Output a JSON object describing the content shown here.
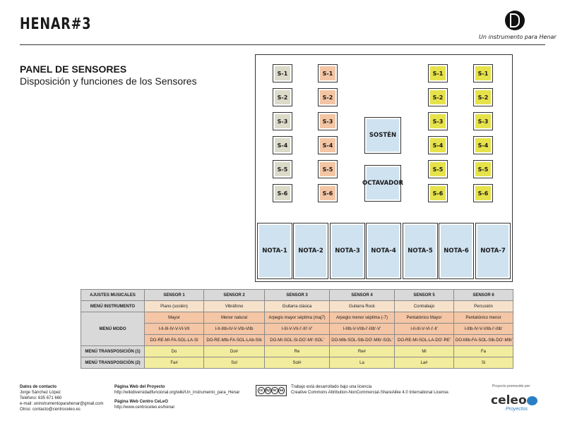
{
  "header": {
    "title": "HENAR#3",
    "tagline": "Un instrumento para Henar"
  },
  "panel": {
    "title": "PANEL DE SENSORES",
    "subtitle": "Disposición y funciones de los Sensores"
  },
  "board": {
    "columns": [
      {
        "color": "#dcdac9",
        "labels": [
          "S-1",
          "S-2",
          "S-3",
          "S-4",
          "S-5",
          "S-6"
        ]
      },
      {
        "color": "#f3c5a4",
        "labels": [
          "S-1",
          "S-2",
          "S-3",
          "S-4",
          "S-5",
          "S-6"
        ]
      },
      {
        "color": "#e6e24a",
        "labels": [
          "S-1",
          "S-2",
          "S-3",
          "S-4",
          "S-5",
          "S-6"
        ]
      },
      {
        "color": "#e6e24a",
        "labels": [
          "S-1",
          "S-2",
          "S-3",
          "S-4",
          "S-5",
          "S-6"
        ]
      }
    ],
    "sosten_label": "SOSTÉN",
    "octavador_label": "OCTAVADOR",
    "notes": [
      "NOTA-1",
      "NOTA-2",
      "NOTA-3",
      "NOTA-4",
      "NOTA-5",
      "NOTA-6",
      "NOTA-7"
    ]
  },
  "table": {
    "headers": [
      "AJUSTES MUSICALES",
      "SENSOR 1",
      "SENSOR 2",
      "SENSOR 3",
      "SENSOR 4",
      "SENSOR 5",
      "SENSOR 6"
    ],
    "instrumento": {
      "label": "MENÚ INSTRUMENTO",
      "values": [
        "Piano (sostén)",
        "Vibráfono",
        "Guitarra clásica",
        "Guitarra Rock",
        "Contrabajo",
        "Percusión"
      ]
    },
    "modo": {
      "label": "MENÚ MODO",
      "rows": [
        [
          "Mayor",
          "Menor natural",
          "Arpegio mayor séptima (maj7)",
          "Arpegio menor séptima (-7)",
          "Pentatónico Mayor",
          "Pentatónico menor"
        ],
        [
          "I-II-III-IV-V-VI-VII",
          "I-II-IIIb-IV-V-VIb-VIIb",
          "I-III-V-VII-I'-III'-V'",
          "I-IIIb-V-VIIb-I'-IIIb'-V'",
          "I-II-III-V-VI-I'-II'",
          "I-IIIb-IV-V-VIIb-I'-IIIb'"
        ],
        [
          "DO-RE-MI-FA-SOL-LA-SI",
          "DO-RE-MIb-FA-SOL-LAb-SIb",
          "DO-MI-SOL-SI-DO'-MI'-SOL'",
          "DO-MIb-SOL-SIb-DO'-MIb'-SOL'",
          "DO-RE-MI-SOL-LA-DO'-RE'",
          "DO-MIb-FA-SOL-SIb-DO'-MIb'"
        ]
      ]
    },
    "transposicion1": {
      "label": "MENÚ TRANSPOSICIÓN (1)",
      "values": [
        "Do",
        "Do#",
        "Re",
        "Re#",
        "Mi",
        "Fa"
      ]
    },
    "transposicion2": {
      "label": "MENÚ TRANSPOSICIÓN (2)",
      "values": [
        "Fa#",
        "Sol",
        "Sol#",
        "La",
        "La#",
        "Si"
      ]
    }
  },
  "footer": {
    "contact_title": "Datos de contacto",
    "contact_lines": [
      "Jorge Sánchez López",
      "Teléfono: 635 671 660",
      "e-mail: uninstrumentoparahenar@gmail.com",
      "Otros: contacto@centroceleo.es"
    ],
    "web_project_title": "Página Web del Proyecto",
    "web_project_url": "http://wikidiversidadfuncional.org/wiki/Un_instrumento_para_Henar",
    "web_celeo_title": "Página Web Centro CeLeO",
    "web_celeo_url": "http://www.centroceleo.es/henar",
    "license_lines": [
      "Trabajo está desarrollado bajo una licencia",
      "Creative Commons Attribution-NonCommercial-ShareAlike 4.0 International License."
    ],
    "cc_icons": [
      "cc",
      "by",
      "nc",
      "sa"
    ],
    "promoted_label": "Proyecto promovido por:",
    "celeo_logo": "celeo",
    "celeo_sub": "Proyectos"
  }
}
